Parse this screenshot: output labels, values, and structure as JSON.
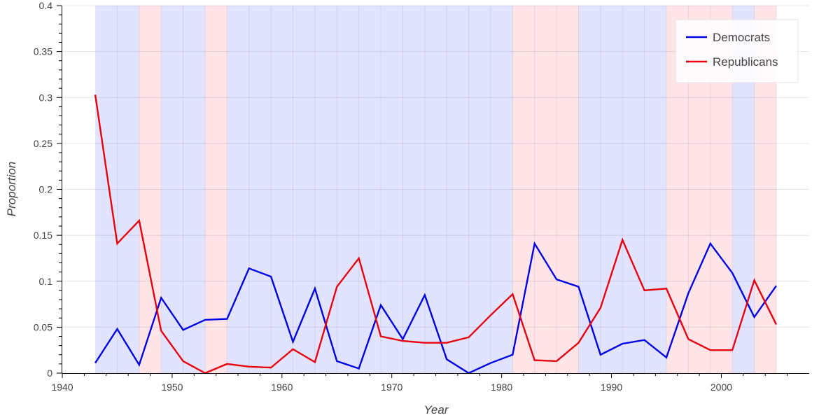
{
  "chart_data": {
    "type": "line",
    "xlabel": "Year",
    "ylabel": "Proportion",
    "xlim": [
      1940,
      2008
    ],
    "ylim": [
      0,
      0.4
    ],
    "x_ticks": [
      1940,
      1950,
      1960,
      1970,
      1980,
      1990,
      2000
    ],
    "x_tick_labels": [
      "1940",
      "1950",
      "1960",
      "1970",
      "1980",
      "1990",
      "2000"
    ],
    "y_ticks": [
      0,
      0.05,
      0.1,
      0.15,
      0.2,
      0.25,
      0.3,
      0.35,
      0.4
    ],
    "y_tick_labels": [
      "0",
      "0.05",
      "0.1",
      "0.15",
      "0.2",
      "0.25",
      "0.3",
      "0.35",
      "0.4"
    ],
    "grid": true,
    "legend_position": "top-right",
    "x": [
      1943,
      1945,
      1947,
      1949,
      1951,
      1953,
      1955,
      1957,
      1959,
      1961,
      1963,
      1965,
      1967,
      1969,
      1971,
      1973,
      1975,
      1977,
      1979,
      1981,
      1983,
      1985,
      1987,
      1989,
      1991,
      1993,
      1995,
      1997,
      1999,
      2001,
      2003,
      2005
    ],
    "series": [
      {
        "name": "Democrats",
        "color": "#0000e6",
        "values": [
          0.011,
          0.048,
          0.009,
          0.082,
          0.047,
          0.058,
          0.059,
          0.114,
          0.105,
          0.034,
          0.092,
          0.013,
          0.005,
          0.074,
          0.037,
          0.085,
          0.015,
          0.0,
          0.011,
          0.02,
          0.141,
          0.102,
          0.094,
          0.02,
          0.032,
          0.036,
          0.017,
          0.087,
          0.141,
          0.109,
          0.061,
          0.095
        ]
      },
      {
        "name": "Republicans",
        "color": "#e6000f",
        "values": [
          0.303,
          0.141,
          0.166,
          0.046,
          0.013,
          0.0,
          0.01,
          0.007,
          0.006,
          0.026,
          0.012,
          0.094,
          0.125,
          0.04,
          0.035,
          0.033,
          0.033,
          0.039,
          0.063,
          0.086,
          0.014,
          0.013,
          0.033,
          0.071,
          0.145,
          0.09,
          0.092,
          0.037,
          0.025,
          0.025,
          0.101,
          0.053
        ]
      }
    ],
    "background_bands": [
      {
        "party": "Democrats",
        "start": 1943,
        "end": 1947,
        "color": "#e2e4ff"
      },
      {
        "party": "Republicans",
        "start": 1947,
        "end": 1949,
        "color": "#ffe4e8"
      },
      {
        "party": "Democrats",
        "start": 1949,
        "end": 1953,
        "color": "#e2e4ff"
      },
      {
        "party": "Republicans",
        "start": 1953,
        "end": 1955,
        "color": "#ffe4e8"
      },
      {
        "party": "Democrats",
        "start": 1955,
        "end": 1981,
        "color": "#e2e4ff"
      },
      {
        "party": "Republicans",
        "start": 1981,
        "end": 1987,
        "color": "#ffe4e8"
      },
      {
        "party": "Democrats",
        "start": 1987,
        "end": 1995,
        "color": "#e2e4ff"
      },
      {
        "party": "Republicans",
        "start": 1995,
        "end": 2001,
        "color": "#ffe4e8"
      },
      {
        "party": "Democrats",
        "start": 2001,
        "end": 2003,
        "color": "#e2e4ff"
      },
      {
        "party": "Republicans",
        "start": 2003,
        "end": 2005,
        "color": "#ffe4e8"
      }
    ]
  }
}
